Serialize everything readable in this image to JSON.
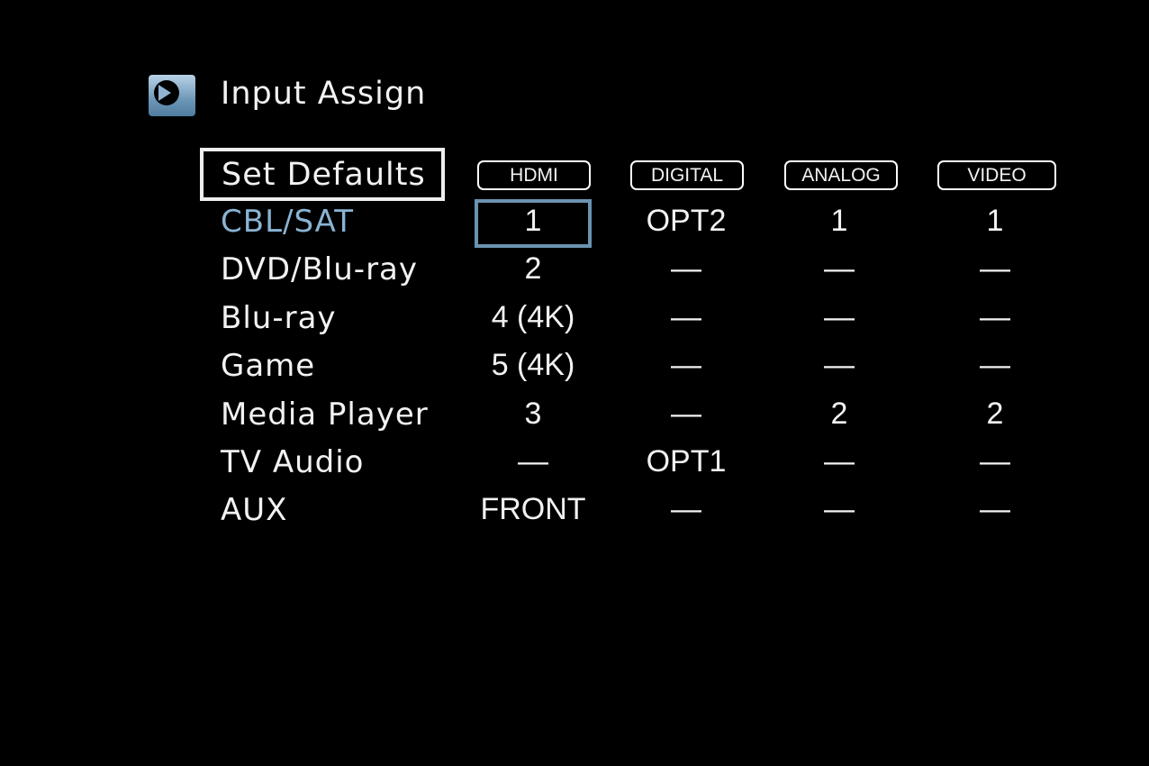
{
  "header": {
    "title": "Input Assign",
    "icon": "arrow-right-circle-icon"
  },
  "set_defaults_label": "Set Defaults",
  "columns": [
    "HDMI",
    "DIGITAL",
    "ANALOG",
    "VIDEO"
  ],
  "rows": [
    {
      "label": "CBL/SAT",
      "values": [
        "1",
        "OPT2",
        "1",
        "1"
      ],
      "selected": true
    },
    {
      "label": "DVD/Blu-ray",
      "values": [
        "2",
        "—",
        "—",
        "—"
      ]
    },
    {
      "label": "Blu-ray",
      "values": [
        "4 (4K)",
        "—",
        "—",
        "—"
      ]
    },
    {
      "label": "Game",
      "values": [
        "5 (4K)",
        "—",
        "—",
        "—"
      ]
    },
    {
      "label": "Media Player",
      "values": [
        "3",
        "—",
        "2",
        "2"
      ]
    },
    {
      "label": "TV Audio",
      "values": [
        "—",
        "OPT1",
        "—",
        "—"
      ]
    },
    {
      "label": "AUX",
      "values": [
        "FRONT",
        "—",
        "—",
        "—"
      ]
    }
  ],
  "colors": {
    "selected_text": "#8ab3d3",
    "cursor_border": "#6a93b0",
    "background": "#000000"
  }
}
